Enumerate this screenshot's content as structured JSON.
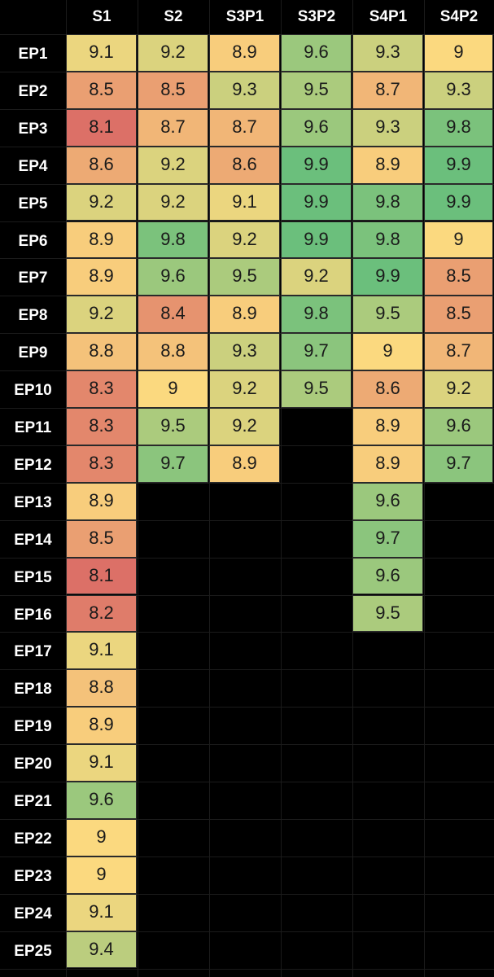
{
  "chart_data": {
    "type": "heatmap",
    "columns": [
      "S1",
      "S2",
      "S3P1",
      "S3P2",
      "S4P1",
      "S4P2"
    ],
    "rows": [
      "EP1",
      "EP2",
      "EP3",
      "EP4",
      "EP5",
      "EP6",
      "EP7",
      "EP8",
      "EP9",
      "EP10",
      "EP11",
      "EP12",
      "EP13",
      "EP14",
      "EP15",
      "EP16",
      "EP17",
      "EP18",
      "EP19",
      "EP20",
      "EP21",
      "EP22",
      "EP23",
      "EP24",
      "EP25"
    ],
    "values": [
      [
        "9.1",
        "9.2",
        "8.9",
        "9.6",
        "9.3",
        "9"
      ],
      [
        "8.5",
        "8.5",
        "9.3",
        "9.5",
        "8.7",
        "9.3"
      ],
      [
        "8.1",
        "8.7",
        "8.7",
        "9.6",
        "9.3",
        "9.8"
      ],
      [
        "8.6",
        "9.2",
        "8.6",
        "9.9",
        "8.9",
        "9.9"
      ],
      [
        "9.2",
        "9.2",
        "9.1",
        "9.9",
        "9.8",
        "9.9"
      ],
      [
        "8.9",
        "9.8",
        "9.2",
        "9.9",
        "9.8",
        "9"
      ],
      [
        "8.9",
        "9.6",
        "9.5",
        "9.2",
        "9.9",
        "8.5"
      ],
      [
        "9.2",
        "8.4",
        "8.9",
        "9.8",
        "9.5",
        "8.5"
      ],
      [
        "8.8",
        "8.8",
        "9.3",
        "9.7",
        "9",
        "8.7"
      ],
      [
        "8.3",
        "9",
        "9.2",
        "9.5",
        "8.6",
        "9.2"
      ],
      [
        "8.3",
        "9.5",
        "9.2",
        null,
        "8.9",
        "9.6"
      ],
      [
        "8.3",
        "9.7",
        "8.9",
        null,
        "8.9",
        "9.7"
      ],
      [
        "8.9",
        null,
        null,
        null,
        "9.6",
        null
      ],
      [
        "8.5",
        null,
        null,
        null,
        "9.7",
        null
      ],
      [
        "8.1",
        null,
        null,
        null,
        "9.6",
        null
      ],
      [
        "8.2",
        null,
        null,
        null,
        "9.5",
        null
      ],
      [
        "9.1",
        null,
        null,
        null,
        null,
        null
      ],
      [
        "8.8",
        null,
        null,
        null,
        null,
        null
      ],
      [
        "8.9",
        null,
        null,
        null,
        null,
        null
      ],
      [
        "9.1",
        null,
        null,
        null,
        null,
        null
      ],
      [
        "9.6",
        null,
        null,
        null,
        null,
        null
      ],
      [
        "9",
        null,
        null,
        null,
        null,
        null
      ],
      [
        "9",
        null,
        null,
        null,
        null,
        null
      ],
      [
        "9.1",
        null,
        null,
        null,
        null,
        null
      ],
      [
        "9.4",
        null,
        null,
        null,
        null,
        null
      ]
    ],
    "color_scale": {
      "min": 8.1,
      "max": 9.9,
      "low_color": "#dc7067",
      "mid_color": "#fbd97f",
      "high_color": "#6bbf7c"
    },
    "background_color": "#000000"
  }
}
